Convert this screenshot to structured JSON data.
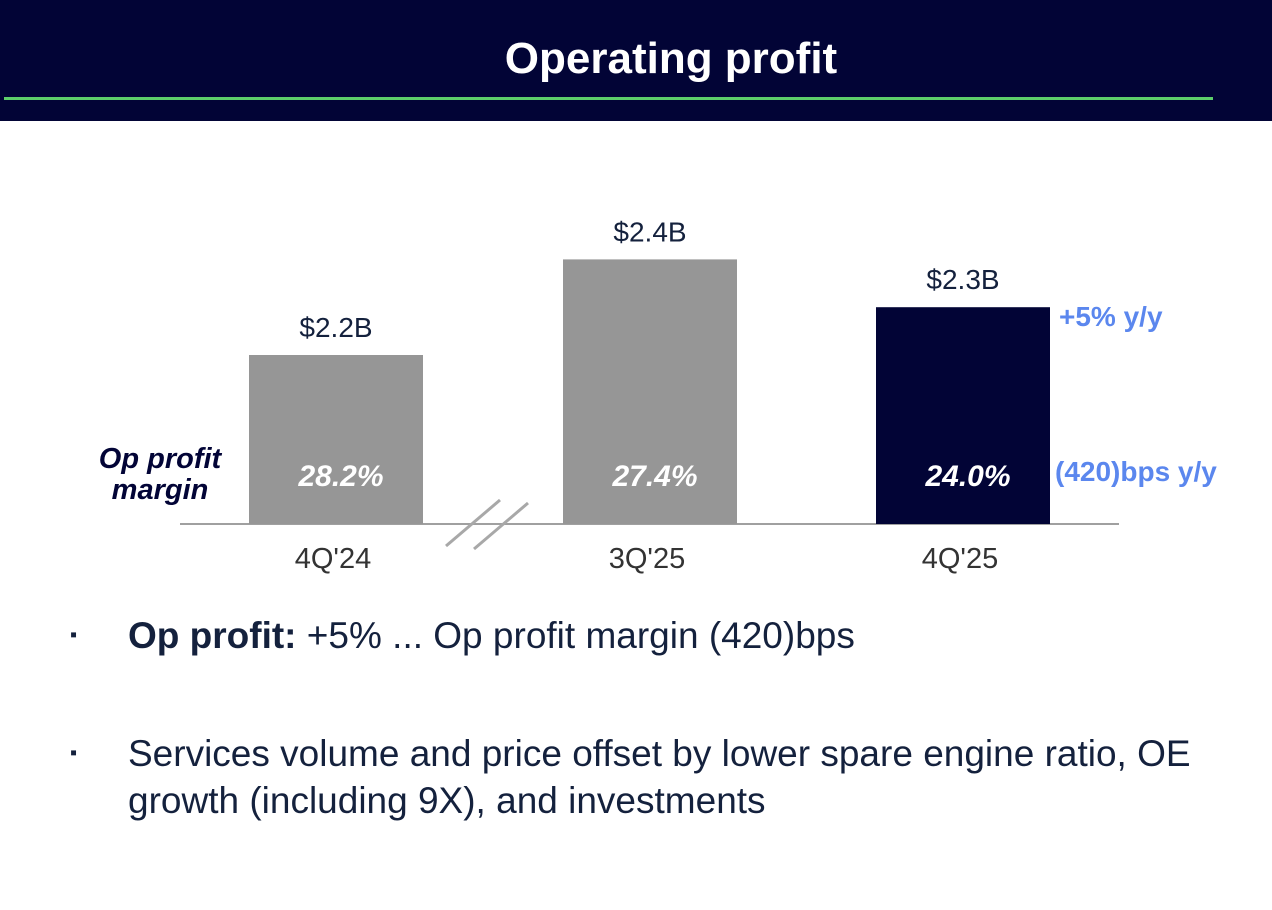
{
  "header": {
    "title": "Operating profit"
  },
  "chart_data": {
    "type": "bar",
    "categories": [
      "4Q'24",
      "3Q'25",
      "4Q'25"
    ],
    "values": [
      2.2,
      2.4,
      2.3
    ],
    "value_labels": [
      "$2.2B",
      "$2.4B",
      "$2.3B"
    ],
    "margin_values": [
      28.2,
      27.4,
      24.0
    ],
    "margin_labels": [
      "28.2%",
      "27.4%",
      "24.0%"
    ],
    "margin_title": "Op profit margin",
    "axis_break_after": "4Q'24",
    "ylim": [
      0,
      2.4
    ],
    "bar_colors": [
      "#969696",
      "#969696",
      "#020436"
    ],
    "annotations": {
      "growth": "+5% y/y",
      "margin_change": "(420)bps y/y"
    },
    "colors": {
      "annotation": "#5b87ee",
      "axis": "#a0a0a0",
      "text": "#14213d"
    }
  },
  "bullets": [
    {
      "marker": "▪",
      "lead": "Op profit:",
      "text": " +5% ... Op profit margin (420)bps"
    },
    {
      "marker": "▪",
      "lead": "",
      "text": "Services volume and price offset by lower spare engine ratio, OE growth (including 9X), and investments"
    }
  ]
}
